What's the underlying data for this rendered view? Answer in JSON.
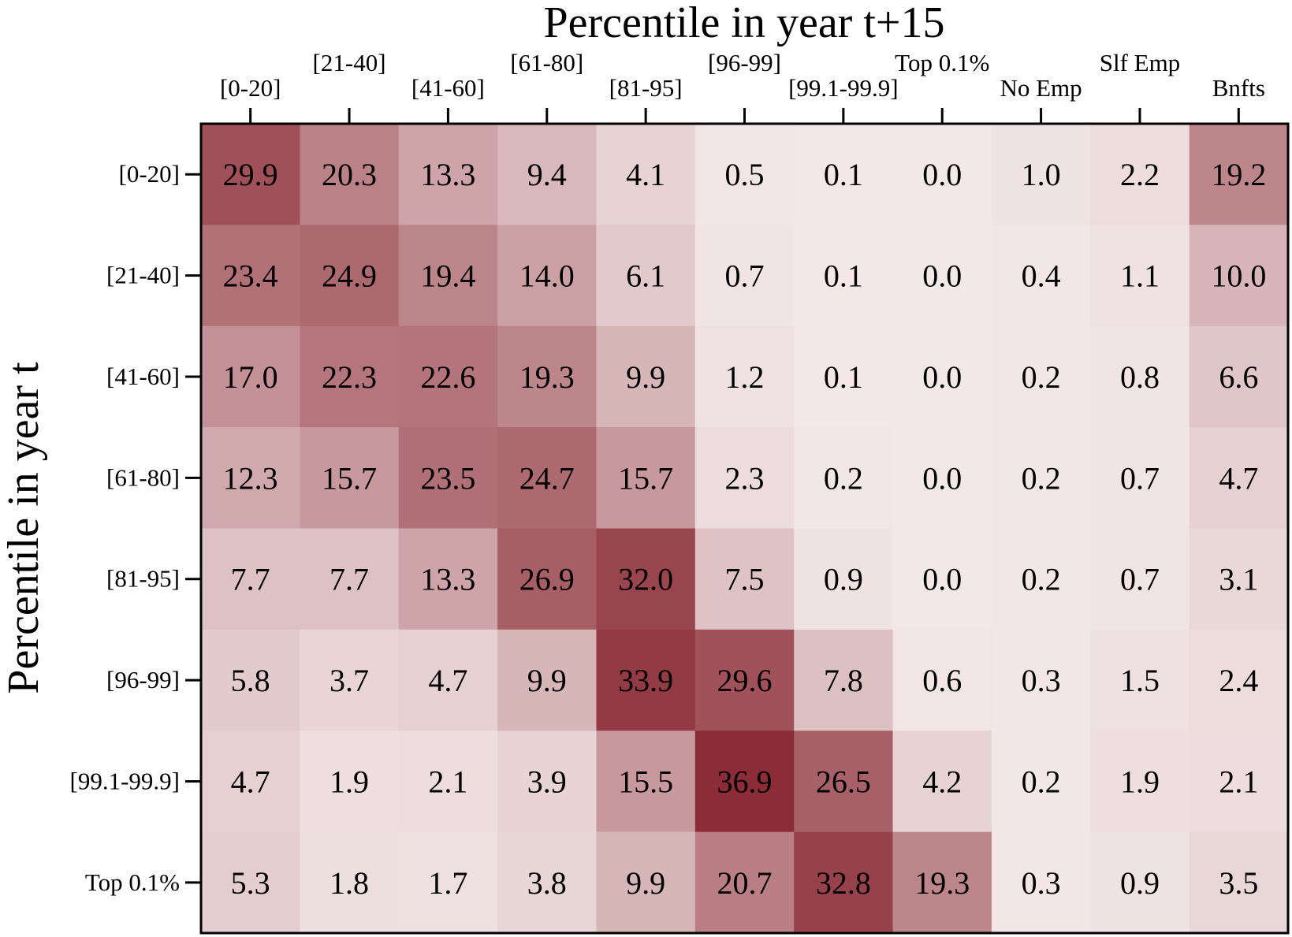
{
  "chart_data": {
    "type": "heatmap",
    "title": "Percentile in year t+15",
    "xlabel": "Percentile in year t+15",
    "ylabel": "Percentile in year t",
    "x_categories": [
      "[0-20]",
      "[21-40]",
      "[41-60]",
      "[61-80]",
      "[81-95]",
      "[96-99]",
      "[99.1-99.9]",
      "Top 0.1%",
      "No Emp",
      "Slf Emp",
      "Bnfts"
    ],
    "y_categories": [
      "[0-20]",
      "[21-40]",
      "[41-60]",
      "[61-80]",
      "[81-95]",
      "[96-99]",
      "[99.1-99.9]",
      "Top 0.1%"
    ],
    "values": [
      [
        29.9,
        20.3,
        13.3,
        9.4,
        4.1,
        0.5,
        0.1,
        0.0,
        1.0,
        2.2,
        19.2
      ],
      [
        23.4,
        24.9,
        19.4,
        14.0,
        6.1,
        0.7,
        0.1,
        0.0,
        0.4,
        1.1,
        10.0
      ],
      [
        17.0,
        22.3,
        22.6,
        19.3,
        9.9,
        1.2,
        0.1,
        0.0,
        0.2,
        0.8,
        6.6
      ],
      [
        12.3,
        15.7,
        23.5,
        24.7,
        15.7,
        2.3,
        0.2,
        0.0,
        0.2,
        0.7,
        4.7
      ],
      [
        7.7,
        7.7,
        13.3,
        26.9,
        32.0,
        7.5,
        0.9,
        0.0,
        0.2,
        0.7,
        3.1
      ],
      [
        5.8,
        3.7,
        4.7,
        9.9,
        33.9,
        29.6,
        7.8,
        0.6,
        0.3,
        1.5,
        2.4
      ],
      [
        4.7,
        1.9,
        2.1,
        3.9,
        15.5,
        36.9,
        26.5,
        4.2,
        0.2,
        1.9,
        2.1
      ],
      [
        5.3,
        1.8,
        1.7,
        3.8,
        9.9,
        20.7,
        32.8,
        19.3,
        0.3,
        0.9,
        3.5
      ]
    ],
    "color_scale": {
      "low": "#f3e8e8",
      "high": "#8b2c36",
      "min": 0.0,
      "max": 36.9
    },
    "grid": false
  }
}
